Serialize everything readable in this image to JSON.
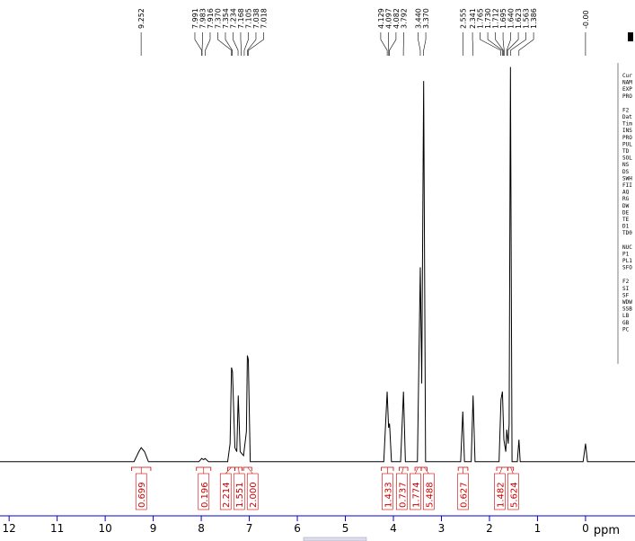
{
  "chart_data": {
    "type": "line",
    "x_label": "ppm",
    "xlim": [
      12.19,
      -1.03
    ],
    "ylim": [
      0,
      100
    ],
    "xticks": [
      12,
      11,
      10,
      9,
      8,
      7,
      6,
      5,
      4,
      3,
      2,
      1,
      0
    ],
    "series": [
      {
        "color": "#000000",
        "x": [
          12.19,
          9.4,
          9.3,
          9.25,
          9.18,
          9.1,
          8.05,
          7.99,
          7.95,
          7.92,
          7.85,
          7.45,
          7.4,
          7.37,
          7.35,
          7.3,
          7.26,
          7.23,
          7.19,
          7.12,
          7.06,
          7.04,
          7.02,
          6.98,
          4.2,
          4.13,
          4.1,
          4.08,
          4.04,
          3.85,
          3.79,
          3.75,
          3.5,
          3.44,
          3.41,
          3.37,
          3.33,
          2.6,
          2.555,
          2.52,
          2.38,
          2.341,
          2.3,
          1.8,
          1.76,
          1.73,
          1.7,
          1.66,
          1.64,
          1.61,
          1.59,
          1.563,
          1.53,
          1.42,
          1.386,
          1.36,
          0.05,
          0.0,
          -0.04,
          -1.03
        ],
        "values": [
          0.5,
          0.5,
          3,
          4,
          3,
          0.5,
          0.5,
          1.3,
          1,
          1.3,
          0.5,
          0.5,
          5,
          24,
          23,
          4,
          3,
          17,
          3,
          2,
          8,
          27,
          26,
          0.5,
          0.5,
          18,
          9,
          10,
          0.5,
          0.5,
          18,
          0.5,
          0.5,
          49,
          20,
          95.5,
          0.5,
          0.5,
          13,
          0.5,
          0.5,
          17,
          0.5,
          0.5,
          16,
          18,
          6,
          3,
          8.5,
          5,
          10,
          99,
          0.5,
          0.5,
          6,
          0.5,
          0.5,
          5,
          0.5,
          0.5
        ]
      }
    ],
    "peak_labels": [
      9.252,
      7.991,
      7.983,
      7.916,
      {
        "value": 7.37,
        "label": "7.370"
      },
      7.354,
      7.234,
      7.168,
      7.105,
      7.038,
      7.018,
      4.129,
      4.097,
      4.082,
      3.792,
      {
        "value": 3.44,
        "label": "3.440"
      },
      {
        "value": 3.37,
        "label": "3.370"
      },
      2.555,
      2.341,
      1.765,
      {
        "value": 1.73,
        "label": "1.730"
      },
      1.712,
      1.695,
      {
        "value": 1.64,
        "label": "1.640"
      },
      1.623,
      1.563,
      1.386,
      {
        "value": 0,
        "label": "-0.00"
      }
    ],
    "integrals": [
      0.699,
      0.196,
      2.214,
      1.551,
      {
        "value": 2,
        "label": "2.000"
      },
      1.433,
      0.737,
      1.774,
      5.488,
      0.627,
      1.482,
      5.624
    ],
    "integral_ranges": [
      [
        9.45,
        9.05
      ],
      [
        8.1,
        7.8
      ],
      [
        7.45,
        7.3
      ],
      [
        7.3,
        7.15
      ],
      [
        7.12,
        6.95
      ],
      [
        4.25,
        4.0
      ],
      [
        3.88,
        3.7
      ],
      [
        3.55,
        3.42
      ],
      [
        3.42,
        3.3
      ],
      [
        2.65,
        2.45
      ],
      [
        1.85,
        1.62
      ],
      [
        1.62,
        1.5
      ]
    ]
  },
  "parameter_panel": [
    "Cur",
    "NAM",
    "EXP",
    "PRO",
    "F2",
    "Dat",
    "Tim",
    "INS",
    "PRO",
    "PUL",
    "TD",
    "SOL",
    "NS",
    "DS",
    "SWH",
    "FII",
    "AQ",
    "RG",
    "DW",
    "DE",
    "TE",
    "D1",
    "TD0",
    "NUC",
    "P1",
    "PL1",
    "SFO",
    "F2",
    "SI",
    "SF",
    "WDW",
    "SSB",
    "LB",
    "GB",
    "PC"
  ]
}
